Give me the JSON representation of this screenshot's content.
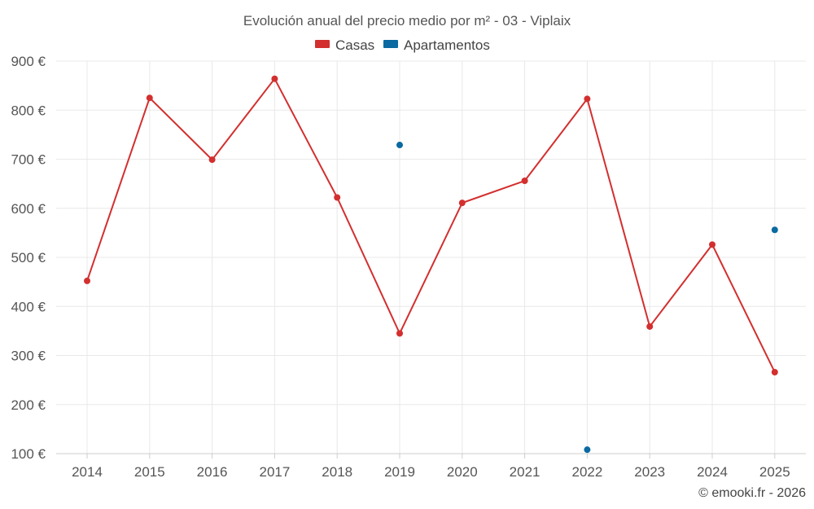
{
  "chart_data": {
    "type": "line",
    "title": "Evolución anual del precio medio por m² - 03 - Viplaix",
    "categories": [
      "2014",
      "2015",
      "2016",
      "2017",
      "2018",
      "2019",
      "2020",
      "2021",
      "2022",
      "2023",
      "2024",
      "2025"
    ],
    "series": [
      {
        "name": "Casas",
        "color": "#d32f2f",
        "values": [
          452,
          825,
          699,
          864,
          622,
          345,
          611,
          656,
          823,
          359,
          526,
          266
        ]
      },
      {
        "name": "Apartamentos",
        "color": "#0a6aa1",
        "values": [
          null,
          null,
          null,
          null,
          null,
          729,
          null,
          null,
          108,
          null,
          null,
          556
        ]
      }
    ],
    "yticks": [
      "100 €",
      "200 €",
      "300 €",
      "400 €",
      "500 €",
      "600 €",
      "700 €",
      "800 €",
      "900 €"
    ],
    "ylim": [
      100,
      900
    ],
    "xlabel": "",
    "ylabel": "",
    "grid": true,
    "legend": "top-center"
  },
  "footer": {
    "copyright": "© emooki.fr - 2026"
  }
}
